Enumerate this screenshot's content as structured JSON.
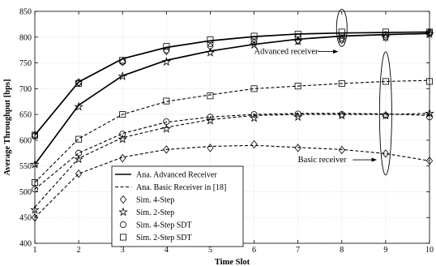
{
  "chart_data": {
    "type": "line",
    "xlabel": "Time Slot",
    "ylabel": "Average Throughput [bps]",
    "xlim": [
      1,
      10
    ],
    "ylim": [
      400,
      850
    ],
    "xticks": [
      1,
      2,
      3,
      4,
      5,
      6,
      7,
      8,
      9,
      10
    ],
    "yticks": [
      400,
      450,
      500,
      550,
      600,
      650,
      700,
      750,
      800,
      850
    ],
    "grid": true,
    "legend_position": "bottom-left",
    "x": [
      1,
      2,
      3,
      4,
      5,
      6,
      7,
      8,
      9,
      10
    ],
    "series": [
      {
        "name": "Ana. Advanced Receiver",
        "style": "solid",
        "values": [
          610,
          713,
          758,
          780,
          793,
          801,
          806,
          808,
          809,
          810
        ]
      },
      {
        "name": "Ana. Advanced Receiver",
        "style": "solid",
        "values": [
          553,
          668,
          725,
          755,
          773,
          786,
          796,
          802,
          805,
          807
        ]
      },
      {
        "name": "Ana. Basic Receiver in [18]",
        "style": "dashed",
        "values": [
          518,
          603,
          650,
          675,
          688,
          700,
          705,
          710,
          714,
          716
        ]
      },
      {
        "name": "Ana. Basic Receiver in [18]",
        "style": "dashed",
        "values": [
          505,
          575,
          613,
          635,
          645,
          650,
          652,
          652,
          651,
          648
        ]
      },
      {
        "name": "Ana. Basic Receiver in [18]",
        "style": "dashed",
        "values": [
          470,
          565,
          605,
          625,
          640,
          648,
          650,
          650,
          650,
          652
        ]
      },
      {
        "name": "Ana. Basic Receiver in [18]",
        "style": "dashed",
        "values": [
          450,
          535,
          567,
          582,
          588,
          590,
          586,
          582,
          574,
          560
        ]
      },
      {
        "name": "Sim. 4-Step",
        "marker": "diamond",
        "values": [
          450,
          535,
          565,
          582,
          585,
          592,
          585,
          581,
          574,
          560
        ]
      },
      {
        "name": "Sim. 2-Step",
        "marker": "star",
        "values": [
          465,
          563,
          602,
          622,
          638,
          643,
          645,
          648,
          648,
          652
        ]
      },
      {
        "name": "Sim. 4-Step SDT",
        "marker": "circle",
        "values": [
          505,
          575,
          612,
          636,
          645,
          650,
          651,
          650,
          648,
          645
        ]
      },
      {
        "name": "Sim. 2-Step SDT",
        "marker": "square",
        "values": [
          518,
          602,
          650,
          676,
          686,
          700,
          705,
          710,
          714,
          714
        ]
      },
      {
        "name": "Sim. 4-Step",
        "marker": "diamond",
        "values": [
          610,
          712,
          752,
          773,
          782,
          790,
          793,
          795,
          799,
          808
        ]
      },
      {
        "name": "Sim. 2-Step",
        "marker": "star",
        "values": [
          553,
          665,
          724,
          752,
          770,
          785,
          792,
          796,
          800,
          806
        ]
      },
      {
        "name": "Sim. 4-Step SDT",
        "marker": "circle",
        "values": [
          608,
          712,
          752,
          775,
          787,
          795,
          800,
          803,
          805,
          809
        ]
      },
      {
        "name": "Sim. 2-Step SDT",
        "marker": "square",
        "values": [
          610,
          710,
          755,
          782,
          795,
          802,
          806,
          810,
          810,
          810
        ]
      }
    ],
    "legend": [
      {
        "label": "Ana. Advanced Receiver",
        "style": "solid"
      },
      {
        "label": "Ana. Basic Receiver in [18]",
        "style": "dashed"
      },
      {
        "label": "Sim. 4-Step",
        "marker": "diamond"
      },
      {
        "label": "Sim. 2-Step",
        "marker": "star"
      },
      {
        "label": "Sim. 4-Step SDT",
        "marker": "circle"
      },
      {
        "label": "Sim. 2-Step SDT",
        "marker": "square"
      }
    ],
    "annotations": [
      {
        "text": "Advanced receiver",
        "x": 8,
        "y": 800
      },
      {
        "text": "Basic receiver",
        "x": 9,
        "y": 650
      }
    ]
  }
}
